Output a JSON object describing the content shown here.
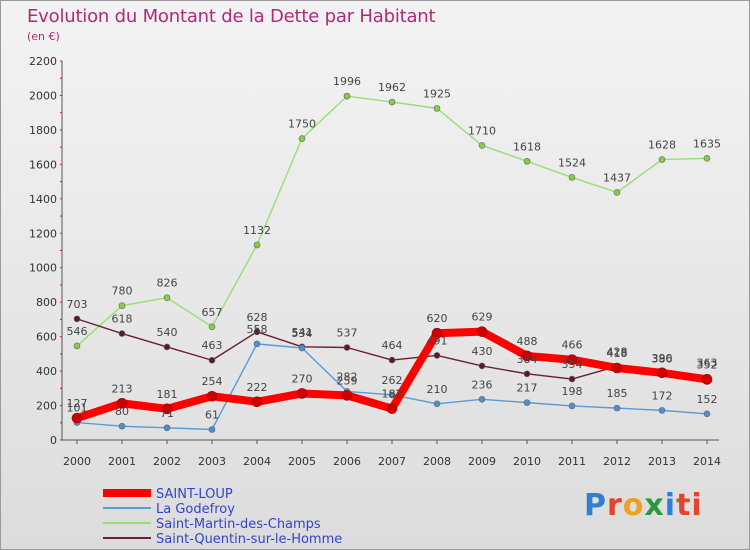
{
  "header": {
    "title": "Evolution du Montant de la Dette par Habitant",
    "subtitle": "(en €)"
  },
  "logo": {
    "letters": [
      "P",
      "r",
      "o",
      "x",
      "i",
      "t",
      "i"
    ]
  },
  "chart_data": {
    "type": "line",
    "title": "Evolution du Montant de la Dette par Habitant",
    "subtitle": "(en €)",
    "x": [
      "2000",
      "2001",
      "2002",
      "2003",
      "2004",
      "2005",
      "2006",
      "2007",
      "2008",
      "2009",
      "2010",
      "2011",
      "2012",
      "2013",
      "2014"
    ],
    "ylim": [
      0,
      2200
    ],
    "yticks": [
      0,
      200,
      400,
      600,
      800,
      1000,
      1200,
      1400,
      1600,
      1800,
      2000,
      2200
    ],
    "grid": false,
    "legend_position": "bottom-left",
    "series": [
      {
        "name": "SAINT-LOUP",
        "color": "#ff0000",
        "marker": "#cc0000",
        "values": [
          127,
          213,
          181,
          254,
          222,
          270,
          259,
          182,
          620,
          629,
          488,
          466,
          418,
          390,
          352
        ]
      },
      {
        "name": "La Godefroy",
        "color": "#5b9bd5",
        "marker": "#4f8fd0",
        "values": [
          101,
          80,
          71,
          61,
          558,
          534,
          282,
          262,
          210,
          236,
          217,
          198,
          185,
          172,
          152
        ]
      },
      {
        "name": "Saint-Martin-des-Champs",
        "color": "#99dd77",
        "marker": "#88cc44",
        "values": [
          546,
          780,
          826,
          657,
          1132,
          1750,
          1996,
          1962,
          1925,
          1710,
          1618,
          1524,
          1437,
          1628,
          1635
        ]
      },
      {
        "name": "Saint-Quentin-sur-le-Homme",
        "color": "#6b2030",
        "marker": "#5a1a28",
        "values": [
          703,
          618,
          540,
          463,
          628,
          541,
          537,
          464,
          491,
          430,
          384,
          354,
          428,
          386,
          363
        ]
      }
    ]
  }
}
